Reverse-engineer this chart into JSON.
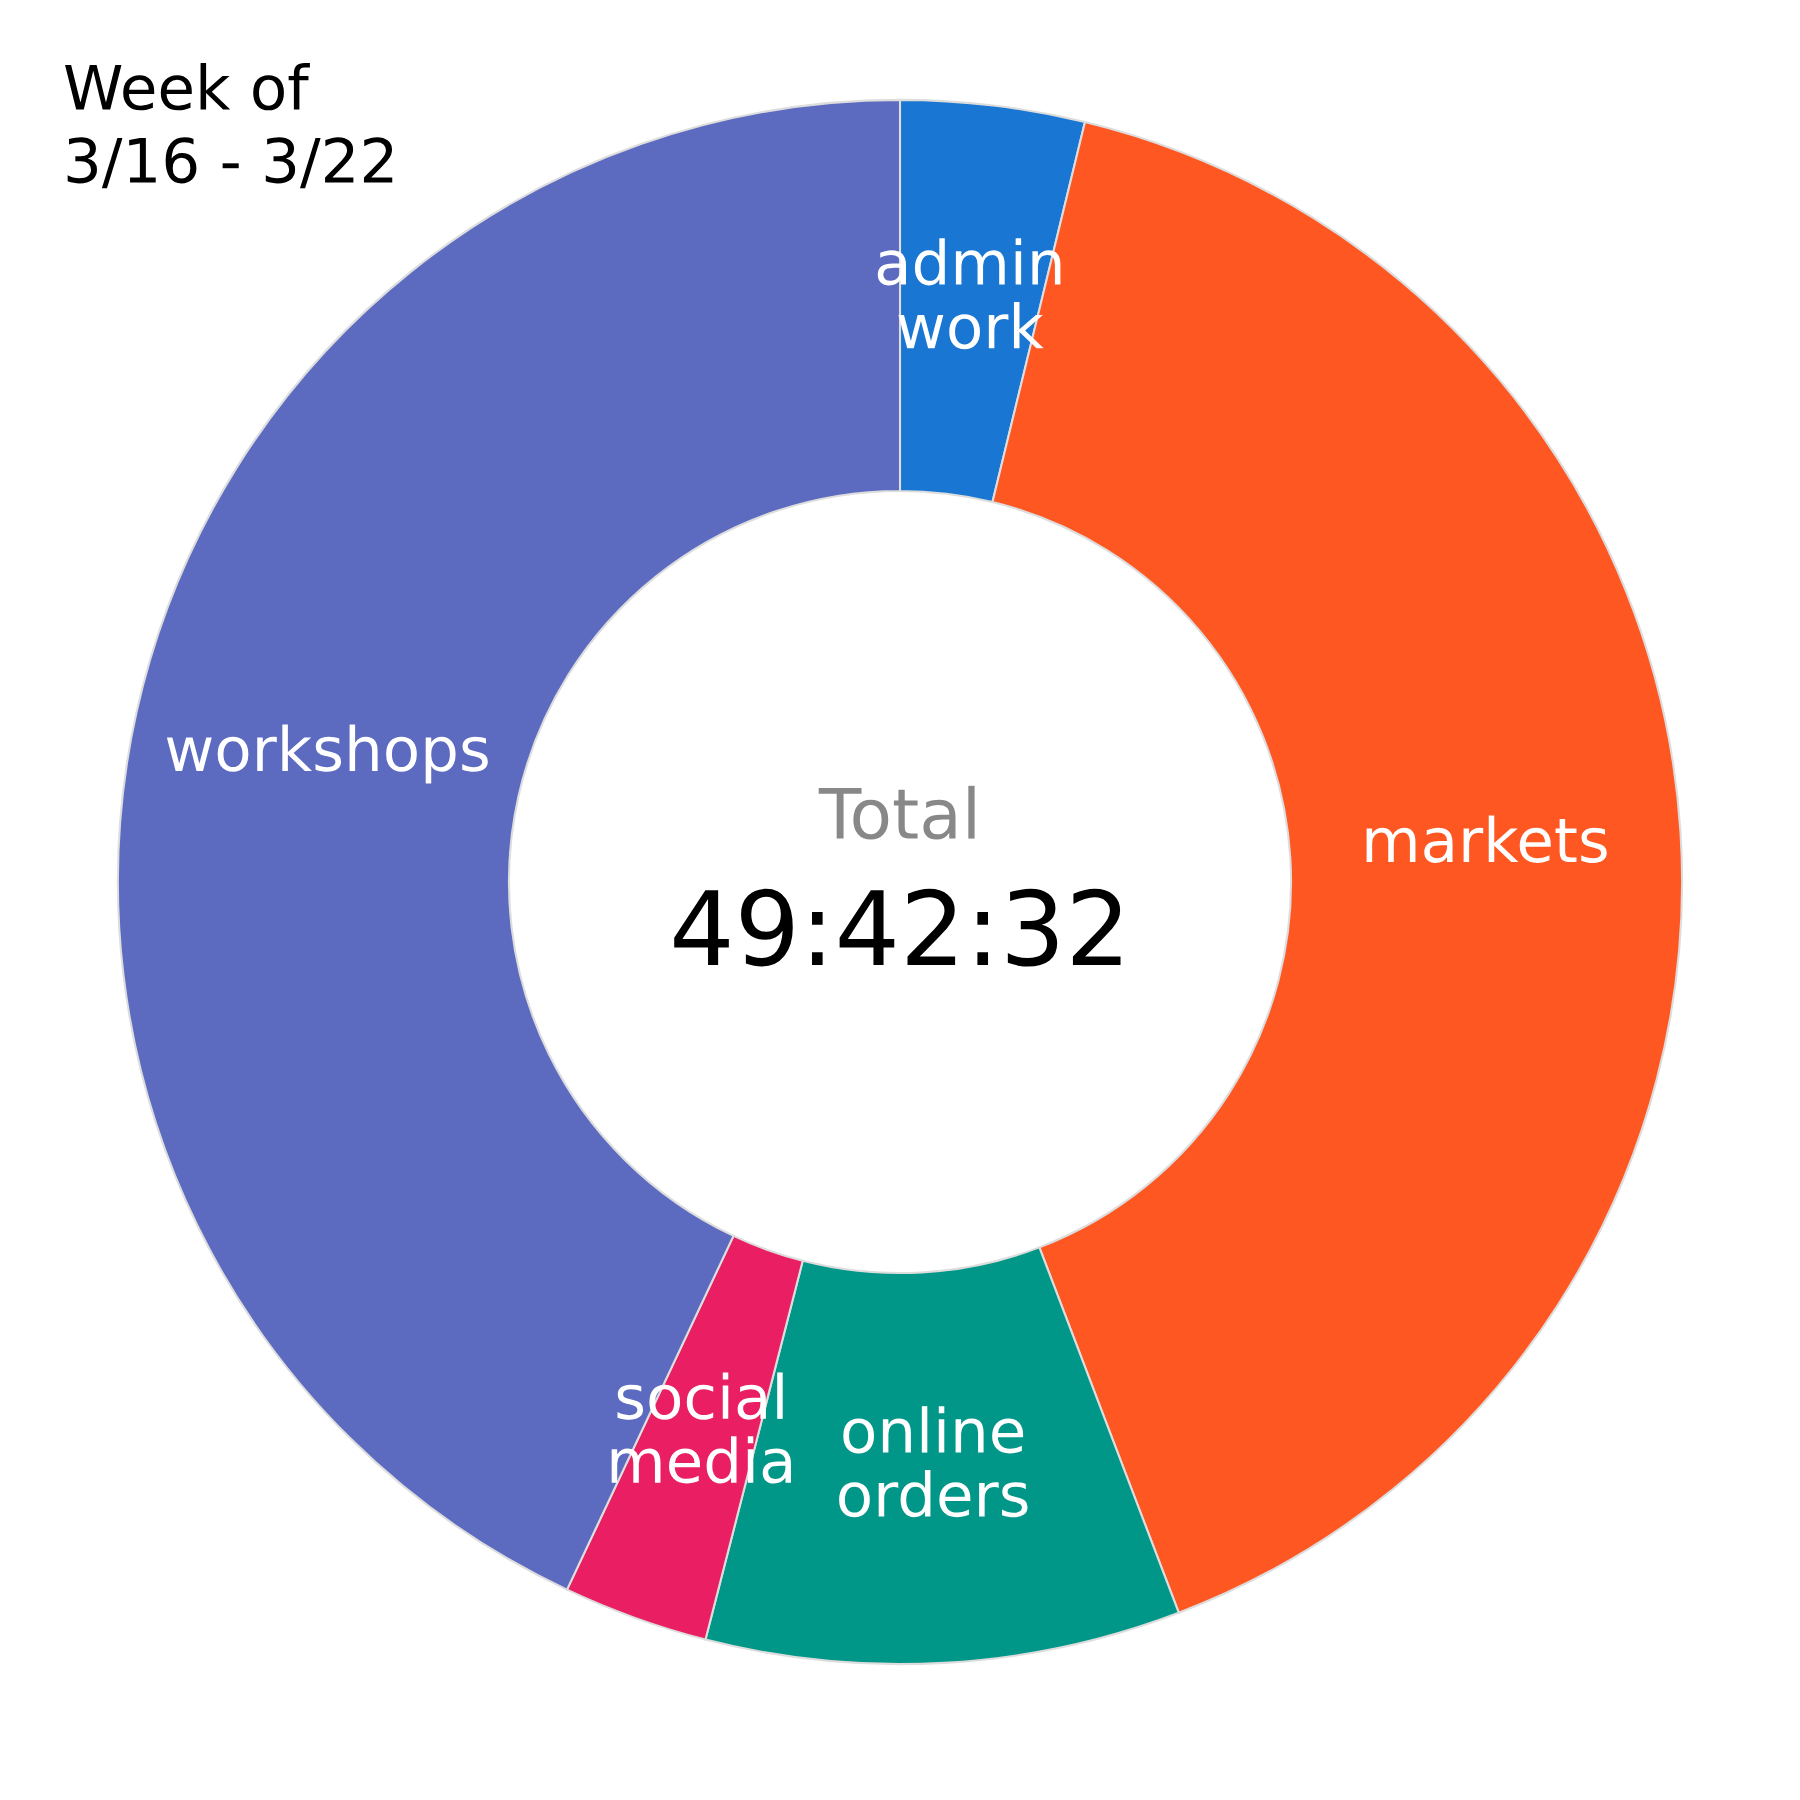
{
  "chart_data": {
    "type": "donut",
    "title": "Week of\n3/16 - 3/22",
    "categories": [
      "admin work",
      "markets",
      "online orders",
      "social media",
      "workshops"
    ],
    "values": [
      3.8,
      40.4,
      9.8,
      3.0,
      43.0
    ],
    "colors": [
      "#1976d2",
      "#ff5722",
      "#009688",
      "#e91e63",
      "#5c6bc0"
    ],
    "annotations": [
      "Total",
      "49:42:32"
    ],
    "legend": false
  }
}
